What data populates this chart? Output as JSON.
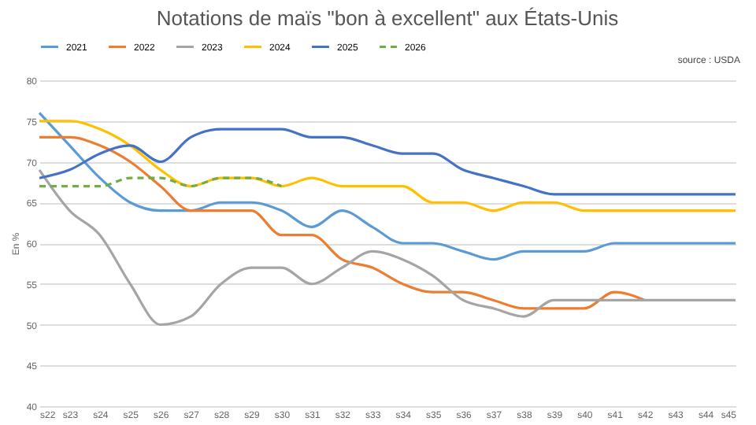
{
  "chart_data": {
    "type": "line",
    "title": "Notations de maïs \"bon à excellent\" aux États-Unis",
    "ylabel": "En %",
    "annotations": [
      "source : USDA"
    ],
    "categories": [
      "s22",
      "s23",
      "s24",
      "s25",
      "s26",
      "s27",
      "s28",
      "s29",
      "s30",
      "s31",
      "s32",
      "s33",
      "s34",
      "s35",
      "s36",
      "s37",
      "s38",
      "s39",
      "s40",
      "s41",
      "s42",
      "s43",
      "s44",
      "s45"
    ],
    "series": [
      {
        "name": "2021",
        "color": "#5b9bd5",
        "values": [
          76,
          72,
          68,
          65,
          64,
          64,
          65,
          65,
          64,
          62,
          64,
          62,
          60,
          60,
          59,
          58,
          59,
          59,
          59,
          60,
          60,
          60,
          60,
          60
        ]
      },
      {
        "name": "2022",
        "color": "#ed7d31",
        "values": [
          73,
          73,
          72,
          70,
          67,
          64,
          64,
          64,
          61,
          61,
          58,
          57,
          55,
          54,
          54,
          53,
          52,
          52,
          52,
          54,
          53,
          null,
          null,
          null
        ]
      },
      {
        "name": "2023",
        "color": "#a5a5a5",
        "values": [
          69,
          64,
          61,
          55,
          50,
          51,
          55,
          57,
          57,
          55,
          57,
          59,
          58,
          56,
          53,
          52,
          51,
          53,
          53,
          53,
          53,
          53,
          53,
          53
        ]
      },
      {
        "name": "2024",
        "color": "#ffc000",
        "values": [
          75,
          75,
          74,
          72,
          69,
          67,
          68,
          68,
          67,
          68,
          67,
          67,
          67,
          65,
          65,
          64,
          65,
          65,
          64,
          64,
          64,
          64,
          64,
          64
        ]
      },
      {
        "name": "2025",
        "color": "#4472c4",
        "values": [
          68,
          69,
          71,
          72,
          70,
          73,
          74,
          74,
          74,
          73,
          73,
          72,
          71,
          71,
          69,
          68,
          67,
          66,
          66,
          66,
          66,
          66,
          66,
          66
        ]
      },
      {
        "name": "2026",
        "color": "#70ad47",
        "line_style": "dashed",
        "values": [
          67,
          67,
          67,
          68,
          68,
          67,
          68,
          68,
          67,
          null,
          null,
          null,
          null,
          null,
          null,
          null,
          null,
          null,
          null,
          null,
          null,
          null,
          null,
          null
        ]
      }
    ],
    "ylim": [
      40,
      80
    ],
    "yticks": [
      40,
      45,
      50,
      55,
      60,
      65,
      70,
      75,
      80
    ],
    "grid": "y",
    "legend": "top",
    "marker": "none",
    "line_style": "solid"
  }
}
